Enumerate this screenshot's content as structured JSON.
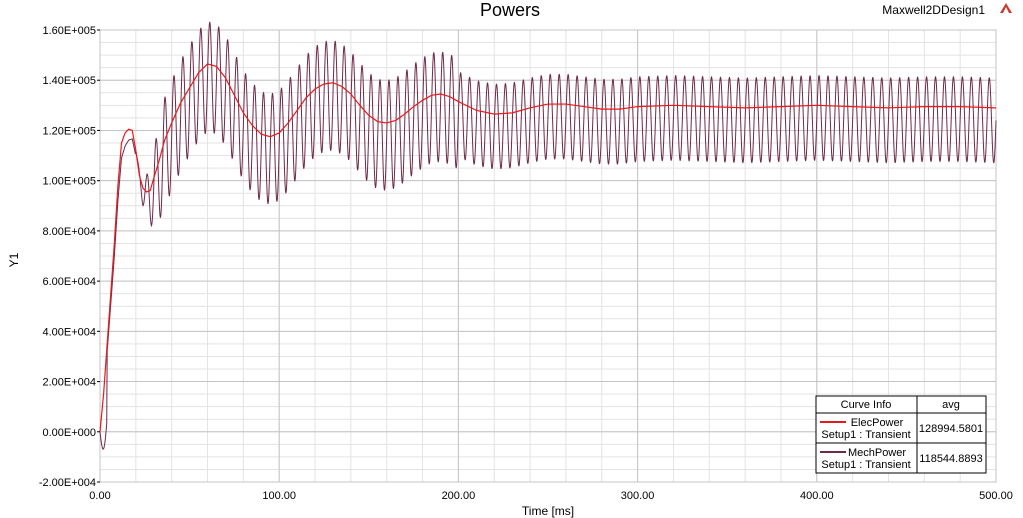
{
  "header": {
    "title": "Powers",
    "design_name": "Maxwell2DDesign1",
    "logo_icon": "ansoft-triangle-icon"
  },
  "chart_data": {
    "type": "line",
    "title": "Powers",
    "xlabel": "Time [ms]",
    "ylabel": "Y1",
    "xlim": [
      0,
      500
    ],
    "ylim": [
      -20000,
      160000
    ],
    "grid": true,
    "x_ticks": [
      "0.00",
      "100.00",
      "200.00",
      "300.00",
      "400.00",
      "500.00"
    ],
    "y_ticks": [
      "-2.00E+004",
      "0.00E+000",
      "2.00E+004",
      "4.00E+004",
      "6.00E+004",
      "8.00E+004",
      "1.00E+005",
      "1.20E+005",
      "1.40E+005",
      "1.60E+005"
    ],
    "legend_position": "bottom-right",
    "legend": {
      "header_name": "Curve Info",
      "header_value": "avg"
    },
    "series": [
      {
        "name": "ElecPower",
        "subtitle": "Setup1 : Transient",
        "avg": "128994.5801",
        "color": "#e8191c",
        "points": [
          [
            0,
            0
          ],
          [
            2,
            15000
          ],
          [
            4,
            35000
          ],
          [
            6,
            55000
          ],
          [
            8,
            75000
          ],
          [
            10,
            98000
          ],
          [
            12,
            115000
          ],
          [
            14,
            119000
          ],
          [
            16,
            120500
          ],
          [
            18,
            120000
          ],
          [
            20,
            112000
          ],
          [
            22,
            102000
          ],
          [
            24,
            97000
          ],
          [
            26,
            95500
          ],
          [
            28,
            96000
          ],
          [
            30,
            101000
          ],
          [
            33,
            108000
          ],
          [
            36,
            116000
          ],
          [
            40,
            123000
          ],
          [
            45,
            131000
          ],
          [
            50,
            137000
          ],
          [
            55,
            143000
          ],
          [
            60,
            146500
          ],
          [
            65,
            145500
          ],
          [
            70,
            141000
          ],
          [
            75,
            134000
          ],
          [
            80,
            127000
          ],
          [
            85,
            122000
          ],
          [
            90,
            118500
          ],
          [
            95,
            117500
          ],
          [
            100,
            119000
          ],
          [
            105,
            123000
          ],
          [
            110,
            128000
          ],
          [
            115,
            133000
          ],
          [
            120,
            136500
          ],
          [
            125,
            138500
          ],
          [
            130,
            139000
          ],
          [
            135,
            137500
          ],
          [
            140,
            134500
          ],
          [
            145,
            130000
          ],
          [
            150,
            126000
          ],
          [
            155,
            123500
          ],
          [
            160,
            123000
          ],
          [
            165,
            124000
          ],
          [
            170,
            126500
          ],
          [
            175,
            129500
          ],
          [
            180,
            132000
          ],
          [
            185,
            134000
          ],
          [
            190,
            134500
          ],
          [
            195,
            133500
          ],
          [
            200,
            131500
          ],
          [
            210,
            128000
          ],
          [
            220,
            126500
          ],
          [
            230,
            127000
          ],
          [
            240,
            129000
          ],
          [
            250,
            130500
          ],
          [
            260,
            130500
          ],
          [
            270,
            129500
          ],
          [
            280,
            128500
          ],
          [
            290,
            128500
          ],
          [
            300,
            129500
          ],
          [
            320,
            130000
          ],
          [
            340,
            129500
          ],
          [
            360,
            129000
          ],
          [
            380,
            129500
          ],
          [
            400,
            130000
          ],
          [
            420,
            129500
          ],
          [
            440,
            129000
          ],
          [
            460,
            129500
          ],
          [
            480,
            129500
          ],
          [
            500,
            129000
          ]
        ]
      },
      {
        "name": "MechPower",
        "subtitle": "Setup1 : Transient",
        "avg": "118544.8893",
        "color": "#6e2a4a"
      }
    ]
  }
}
